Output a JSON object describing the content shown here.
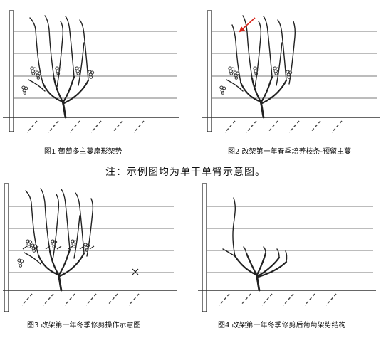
{
  "panels": [
    {
      "caption": "图1  葡萄多主蔓扇形架势"
    },
    {
      "caption": "图2  改架第一年春季培养枝条-预留主蔓"
    },
    {
      "caption": "图3  改架第一年冬季修剪操作示意图"
    },
    {
      "caption": "图4  改架第一年冬季修剪后葡萄架势结构"
    }
  ],
  "note": "注：示例图均为单干单臂示意图。",
  "colors": {
    "arrow": "#d9261c",
    "line": "#222222",
    "wire": "#7a7a7a"
  }
}
